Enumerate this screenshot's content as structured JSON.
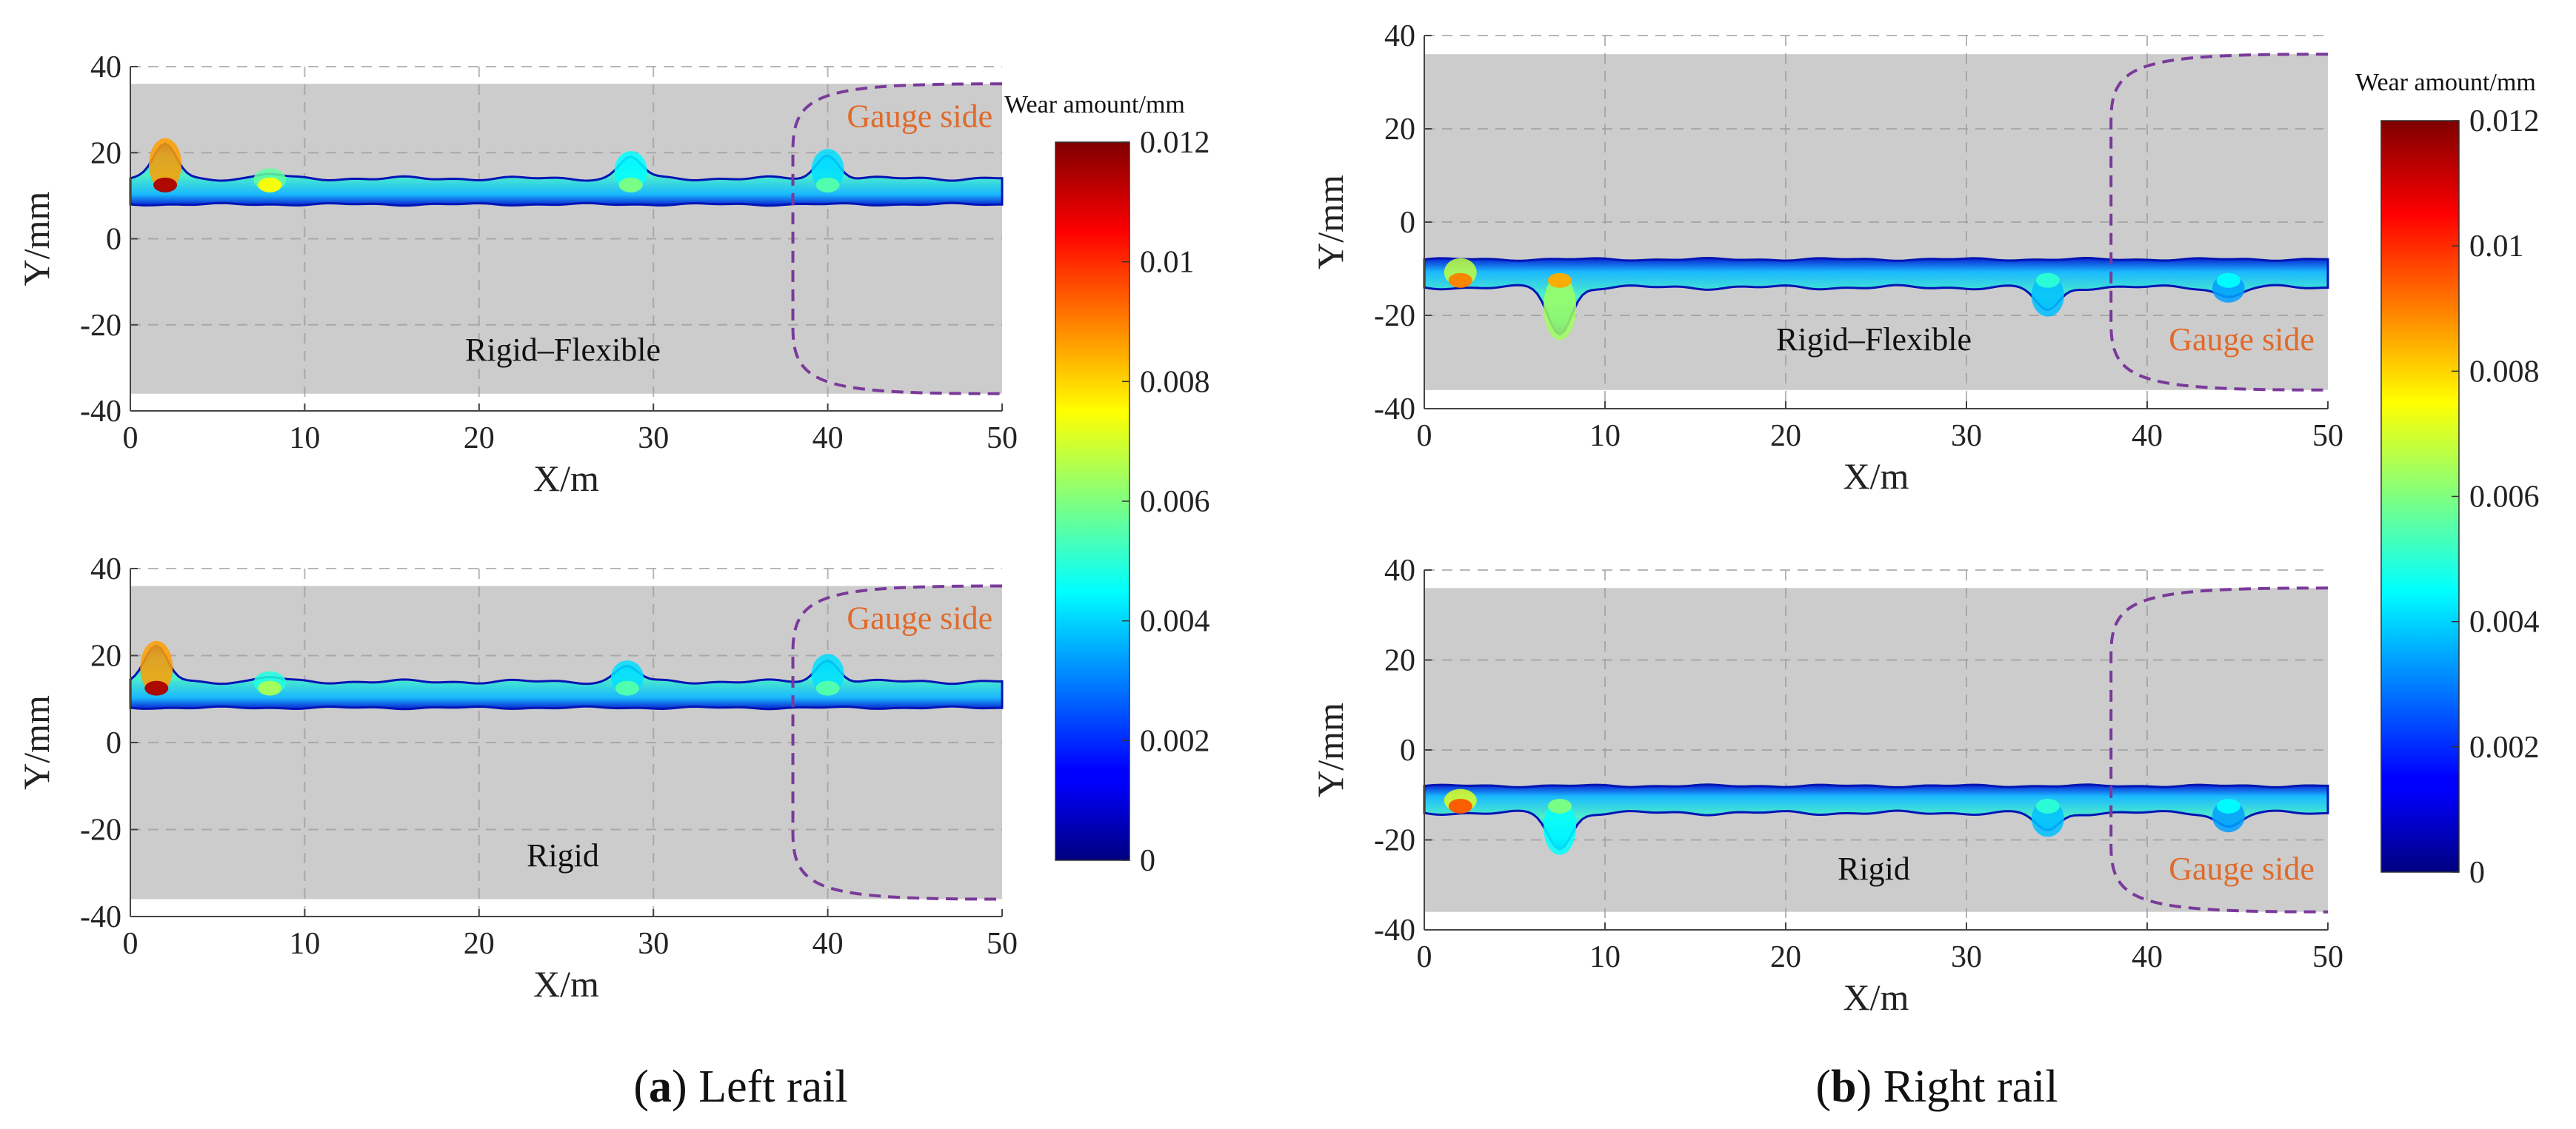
{
  "chart_data": [
    {
      "id": "left-top",
      "type": "heatmap",
      "panel_label": "Rigid–Flexible",
      "annotation": "Gauge side",
      "xlabel": "X/m",
      "ylabel": "Y/mm",
      "xlim": [
        0,
        50
      ],
      "ylim": [
        -40,
        40
      ],
      "xticks": [
        "0",
        "10",
        "20",
        "30",
        "40",
        "50"
      ],
      "yticks": [
        "40",
        "20",
        "0",
        "-20",
        "-40"
      ],
      "rail_half_width": 36,
      "gauge_boundary_x": 38,
      "band": {
        "center": 11,
        "half_width": 3
      },
      "peaks": [
        {
          "x": 2,
          "y": 22,
          "wear": 0.0115
        },
        {
          "x": 8,
          "y": 15,
          "wear": 0.0075
        },
        {
          "x": 28.7,
          "y": 19,
          "wear": 0.006
        },
        {
          "x": 40,
          "y": 19.5,
          "wear": 0.0055
        }
      ]
    },
    {
      "id": "left-bottom",
      "type": "heatmap",
      "panel_label": "Rigid",
      "annotation": "Gauge side",
      "xlabel": "X/m",
      "ylabel": "Y/mm",
      "xlim": [
        0,
        50
      ],
      "ylim": [
        -40,
        40
      ],
      "xticks": [
        "0",
        "10",
        "20",
        "30",
        "40",
        "50"
      ],
      "yticks": [
        "40",
        "20",
        "0",
        "-20",
        "-40"
      ],
      "rail_half_width": 36,
      "gauge_boundary_x": 38,
      "band": {
        "center": 11,
        "half_width": 3
      },
      "peaks": [
        {
          "x": 1.5,
          "y": 22,
          "wear": 0.0115
        },
        {
          "x": 8,
          "y": 15,
          "wear": 0.0065
        },
        {
          "x": 28.5,
          "y": 17.5,
          "wear": 0.0055
        },
        {
          "x": 40,
          "y": 19,
          "wear": 0.0055
        }
      ]
    },
    {
      "id": "right-top",
      "type": "heatmap",
      "panel_label": "Rigid–Flexible",
      "annotation": "Gauge side",
      "xlabel": "X/m",
      "ylabel": "Y/mm",
      "xlim": [
        0,
        50
      ],
      "ylim": [
        -40,
        40
      ],
      "xticks": [
        "0",
        "10",
        "20",
        "30",
        "40",
        "50"
      ],
      "yticks": [
        "40",
        "20",
        "0",
        "-20",
        "-40"
      ],
      "rail_half_width": 36,
      "gauge_boundary_x": 38,
      "band": {
        "center": -11,
        "half_width": 3
      },
      "peaks": [
        {
          "x": 2,
          "y": -9,
          "wear": 0.009
        },
        {
          "x": 7.5,
          "y": -24,
          "wear": 0.0085
        },
        {
          "x": 34.5,
          "y": -19,
          "wear": 0.005
        },
        {
          "x": 44.5,
          "y": -16,
          "wear": 0.0045
        }
      ]
    },
    {
      "id": "right-bottom",
      "type": "heatmap",
      "panel_label": "Rigid",
      "annotation": "Gauge side",
      "xlabel": "X/m",
      "ylabel": "Y/mm",
      "xlim": [
        0,
        50
      ],
      "ylim": [
        -40,
        40
      ],
      "xticks": [
        "0",
        "10",
        "20",
        "30",
        "40",
        "50"
      ],
      "yticks": [
        "40",
        "20",
        "0",
        "-20",
        "-40"
      ],
      "rail_half_width": 36,
      "gauge_boundary_x": 38,
      "band": {
        "center": -11,
        "half_width": 3
      },
      "peaks": [
        {
          "x": 2,
          "y": -10,
          "wear": 0.0095
        },
        {
          "x": 7.5,
          "y": -22,
          "wear": 0.006
        },
        {
          "x": 34.5,
          "y": -18,
          "wear": 0.005
        },
        {
          "x": 44.5,
          "y": -17,
          "wear": 0.0045
        }
      ]
    }
  ],
  "colorbar": {
    "title": "Wear amount/mm",
    "min": 0,
    "max": 0.012,
    "ticks": [
      "0.012",
      "0.01",
      "0.008",
      "0.006",
      "0.004",
      "0.002",
      "0"
    ],
    "colormap": "jet"
  },
  "captions": {
    "left": {
      "letter": "(a)",
      "bold_letter": "a",
      "text": "Left rail"
    },
    "right": {
      "letter": "(b)",
      "bold_letter": "b",
      "text": "Right rail"
    }
  },
  "colors": {
    "rail_gray": "#cccccc",
    "grid": "#9a9a9a",
    "gauge_line": "#7a3a9a",
    "gauge_text": "#e06a2a"
  }
}
